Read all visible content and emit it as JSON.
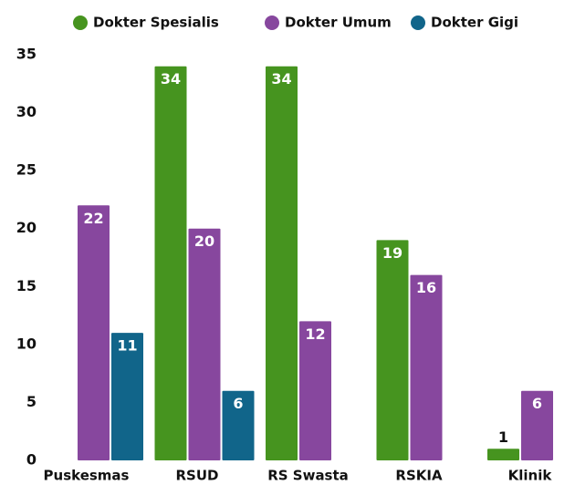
{
  "chart_data": {
    "type": "bar",
    "categories": [
      "Puskesmas",
      "RSUD",
      "RS Swasta",
      "RSKIA",
      "Klinik"
    ],
    "series": [
      {
        "name": "Dokter Spesialis",
        "color": "#46941f",
        "values": [
          null,
          34,
          34,
          19,
          1
        ]
      },
      {
        "name": "Dokter Umum",
        "color": "#87479e",
        "values": [
          22,
          20,
          12,
          16,
          6
        ]
      },
      {
        "name": "Dokter Gigi",
        "color": "#11658a",
        "values": [
          11,
          6,
          null,
          null,
          null
        ]
      }
    ],
    "ylim": [
      0,
      35
    ],
    "yticks": [
      0,
      5,
      10,
      15,
      20,
      25,
      30,
      35
    ],
    "grid": false,
    "legend": "top"
  }
}
